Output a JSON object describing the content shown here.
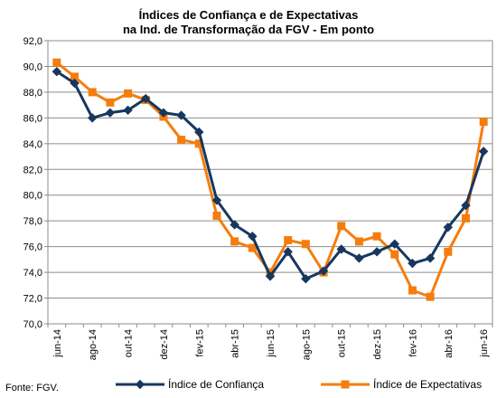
{
  "chart_data": {
    "type": "line",
    "title_line1": "Índices de Confiança e de Expectativas",
    "title_line2": "na Ind. de Transformação da FGV - Em ponto",
    "source": "Fonte: FGV.",
    "ylim": [
      70,
      92
    ],
    "yticks": [
      "92,0",
      "90,0",
      "88,0",
      "86,0",
      "84,0",
      "82,0",
      "80,0",
      "78,0",
      "76,0",
      "74,0",
      "72,0",
      "70,0"
    ],
    "x": [
      "jun-14",
      "jul-14",
      "ago-14",
      "set-14",
      "out-14",
      "nov-14",
      "dez-14",
      "jan-15",
      "fev-15",
      "mar-15",
      "abr-15",
      "mai-15",
      "jun-15",
      "jul-15",
      "ago-15",
      "set-15",
      "out-15",
      "nov-15",
      "dez-15",
      "jan-16",
      "fev-16",
      "mar-16",
      "abr-16",
      "mai-16",
      "jun-16"
    ],
    "xticks_shown": [
      "jun-14",
      "ago-14",
      "out-14",
      "dez-14",
      "fev-15",
      "abr-15",
      "jun-15",
      "ago-15",
      "out-15",
      "dez-15",
      "fev-16",
      "abr-16",
      "jun-16"
    ],
    "grid": true,
    "legend_position": "bottom",
    "series": [
      {
        "name": "Índice de Confiança",
        "color": "#17375e",
        "marker": "diamond",
        "values": [
          89.6,
          88.7,
          86.0,
          86.4,
          86.6,
          87.5,
          86.4,
          86.2,
          84.9,
          79.6,
          77.7,
          76.8,
          73.7,
          75.6,
          73.5,
          74.1,
          75.8,
          75.1,
          75.6,
          76.2,
          74.7,
          75.1,
          77.5,
          79.2,
          83.4
        ]
      },
      {
        "name": "Índice de Expectativas",
        "color": "#f57d0d",
        "marker": "square",
        "values": [
          90.3,
          89.2,
          88.0,
          87.2,
          87.9,
          87.4,
          86.1,
          84.3,
          84.0,
          78.4,
          76.4,
          75.9,
          74.0,
          76.5,
          76.2,
          74.0,
          77.6,
          76.4,
          76.8,
          75.4,
          72.6,
          72.1,
          75.6,
          78.2,
          85.7
        ]
      }
    ]
  }
}
